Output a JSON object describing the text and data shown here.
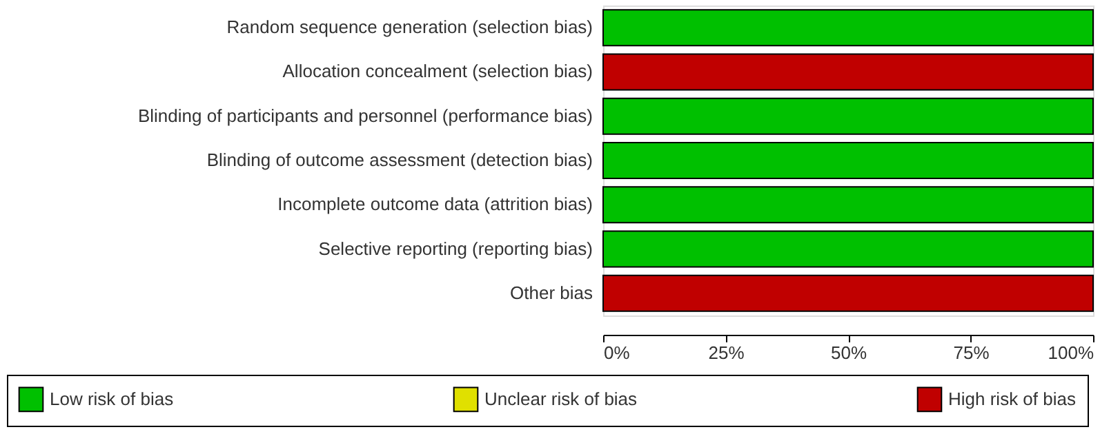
{
  "chart_data": {
    "type": "bar",
    "orientation": "horizontal",
    "stacked": true,
    "categories": [
      "Random sequence generation (selection bias)",
      "Allocation concealment (selection bias)",
      "Blinding of participants and personnel (performance bias)",
      "Blinding of outcome assessment (detection bias)",
      "Incomplete outcome data (attrition bias)",
      "Selective reporting (reporting bias)",
      "Other bias"
    ],
    "series": [
      {
        "name": "Low risk of bias",
        "color": "#00c000",
        "values": [
          100,
          0,
          100,
          100,
          100,
          100,
          0
        ]
      },
      {
        "name": "Unclear risk of bias",
        "color": "#e0e000",
        "values": [
          0,
          0,
          0,
          0,
          0,
          0,
          0
        ]
      },
      {
        "name": "High risk of bias",
        "color": "#c00000",
        "values": [
          0,
          100,
          0,
          0,
          0,
          0,
          100
        ]
      }
    ],
    "xlim": [
      0,
      100
    ],
    "xticks": [
      {
        "value": 0,
        "label": "0%"
      },
      {
        "value": 25,
        "label": "25%"
      },
      {
        "value": 50,
        "label": "50%"
      },
      {
        "value": 75,
        "label": "75%"
      },
      {
        "value": 100,
        "label": "100%"
      }
    ],
    "grid": false,
    "legend": "bottom"
  }
}
